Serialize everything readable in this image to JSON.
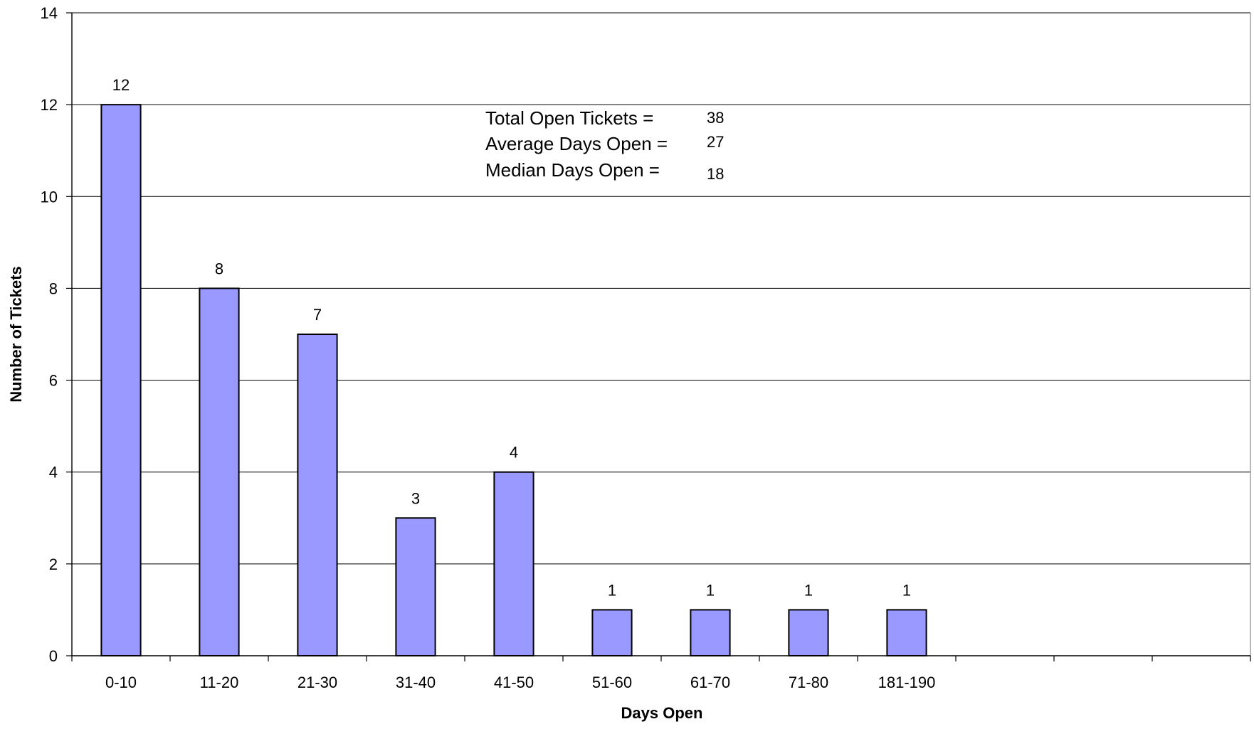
{
  "chart_data": {
    "type": "bar",
    "title": "",
    "xlabel": "Days Open",
    "ylabel": "Number of Tickets",
    "categories": [
      "0-10",
      "11-20",
      "21-30",
      "31-40",
      "41-50",
      "51-60",
      "61-70",
      "71-80",
      "181-190",
      "",
      "",
      ""
    ],
    "values": [
      12,
      8,
      7,
      3,
      4,
      1,
      1,
      1,
      1,
      null,
      null,
      null
    ],
    "ylim": [
      0,
      14
    ],
    "yticks": [
      0,
      2,
      4,
      6,
      8,
      10,
      12,
      14
    ],
    "grid": true,
    "bar_color": "#9999ff",
    "bar_edge_color": "#000000",
    "data_labels": true,
    "annotations": [
      {
        "label": "Total Open Tickets =",
        "value": "38"
      },
      {
        "label": "Average Days Open =",
        "value": "27"
      },
      {
        "label": "Median Days Open =",
        "value": "18"
      }
    ]
  }
}
